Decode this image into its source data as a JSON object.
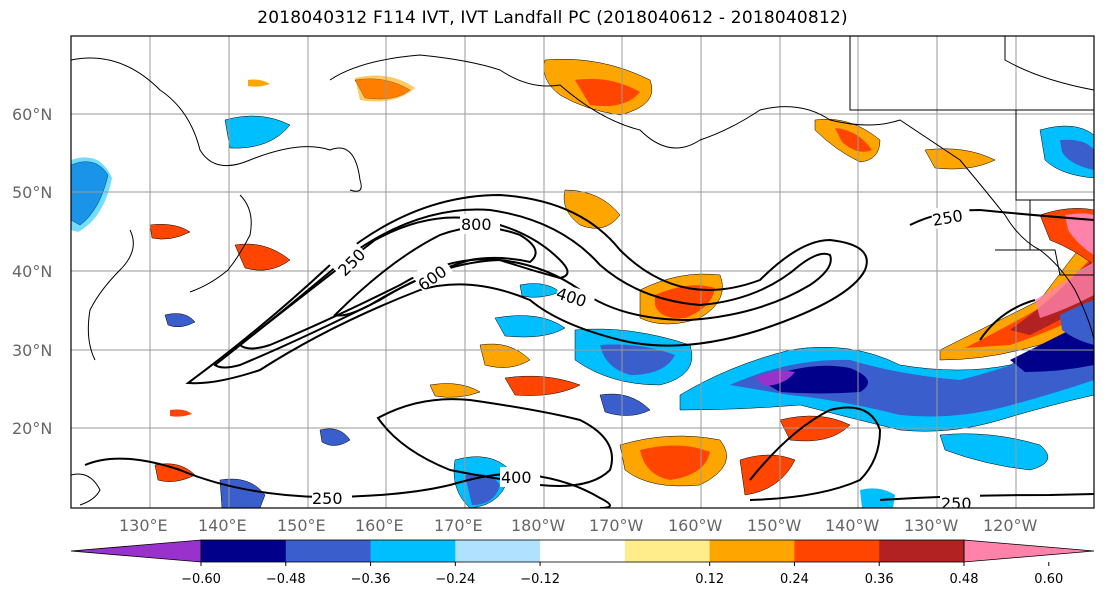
{
  "title": "2018040312 F114 IVT, IVT Landfall PC (2018040612 - 2018040812)",
  "latitude_labels": [
    "60°N",
    "50°N",
    "40°N",
    "30°N",
    "20°N"
  ],
  "longitude_labels": [
    "130°E",
    "140°E",
    "150°E",
    "160°E",
    "170°E",
    "180°W",
    "170°W",
    "160°W",
    "150°W",
    "140°W",
    "130°W",
    "120°W"
  ],
  "contour_labels": [
    "250",
    "800",
    "600",
    "400",
    "250",
    "400",
    "250",
    "250"
  ],
  "colorbar": {
    "tick_labels": [
      "−0.60",
      "−0.48",
      "−0.36",
      "−0.24",
      "−0.12",
      "0.12",
      "0.24",
      "0.36",
      "0.48",
      "0.60"
    ],
    "colors": [
      "#9932cc",
      "#00008b",
      "#3a5fcd",
      "#00bfff",
      "#b0e2ff",
      "#ffffff",
      "#ffec8b",
      "#ffa500",
      "#ff4500",
      "#b22222",
      "#ff82ab"
    ]
  }
}
